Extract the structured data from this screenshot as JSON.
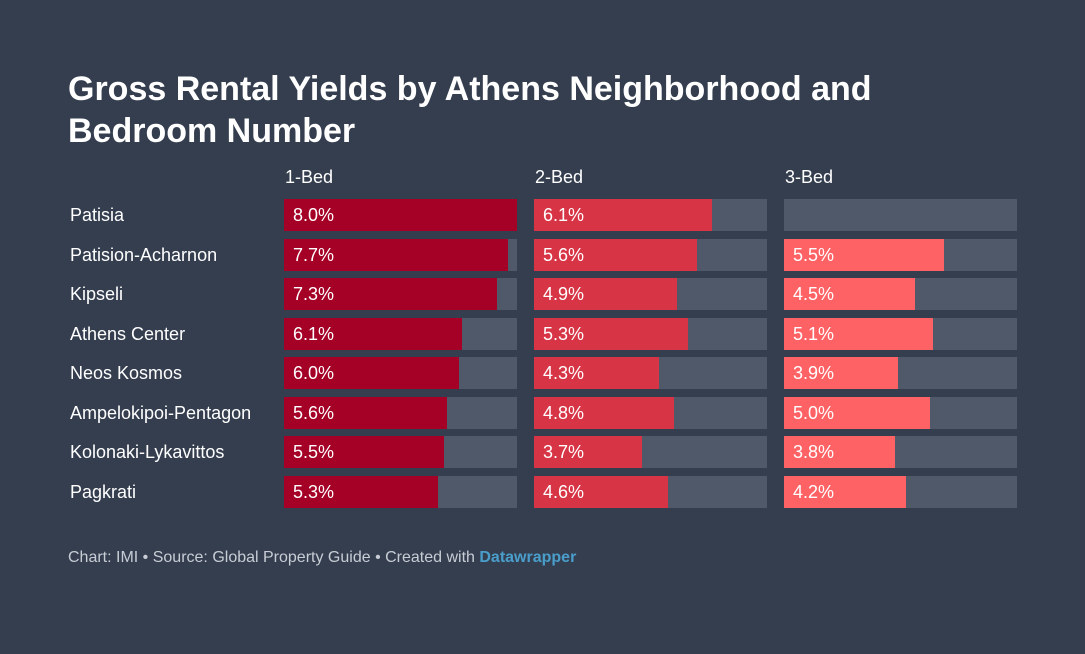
{
  "title": "Gross Rental Yields by Athens Neighborhood and Bedroom Number",
  "footer": {
    "prefix": "Chart: IMI • Source: Global Property Guide • Created with ",
    "brand": "Datawrapper"
  },
  "colors": {
    "background": "#343e4f",
    "track": "#4f596a",
    "series": [
      "#a50026",
      "#d73445",
      "#ff6265"
    ]
  },
  "chart_data": {
    "type": "bar",
    "title": "Gross Rental Yields by Athens Neighborhood and Bedroom Number",
    "categories": [
      "Patisia",
      "Patision-Acharnon",
      "Kipseli",
      "Athens Center",
      "Neos Kosmos",
      "Ampelokipoi-Pentagon",
      "Kolonaki-Lykavittos",
      "Pagkrati"
    ],
    "xlim": [
      0,
      8.0
    ],
    "series": [
      {
        "name": "1-Bed",
        "values": [
          8.0,
          7.7,
          7.3,
          6.1,
          6.0,
          5.6,
          5.5,
          5.3
        ],
        "labels": [
          "8.0%",
          "7.7%",
          "7.3%",
          "6.1%",
          "6.0%",
          "5.6%",
          "5.5%",
          "5.3%"
        ]
      },
      {
        "name": "2-Bed",
        "values": [
          6.1,
          5.6,
          4.9,
          5.3,
          4.3,
          4.8,
          3.7,
          4.6
        ],
        "labels": [
          "6.1%",
          "5.6%",
          "4.9%",
          "5.3%",
          "4.3%",
          "4.8%",
          "3.7%",
          "4.6%"
        ]
      },
      {
        "name": "3-Bed",
        "values": [
          null,
          5.5,
          4.5,
          5.1,
          3.9,
          5.0,
          3.8,
          4.2
        ],
        "labels": [
          "",
          "5.5%",
          "4.5%",
          "5.1%",
          "3.9%",
          "5.0%",
          "3.8%",
          "4.2%"
        ]
      }
    ]
  }
}
